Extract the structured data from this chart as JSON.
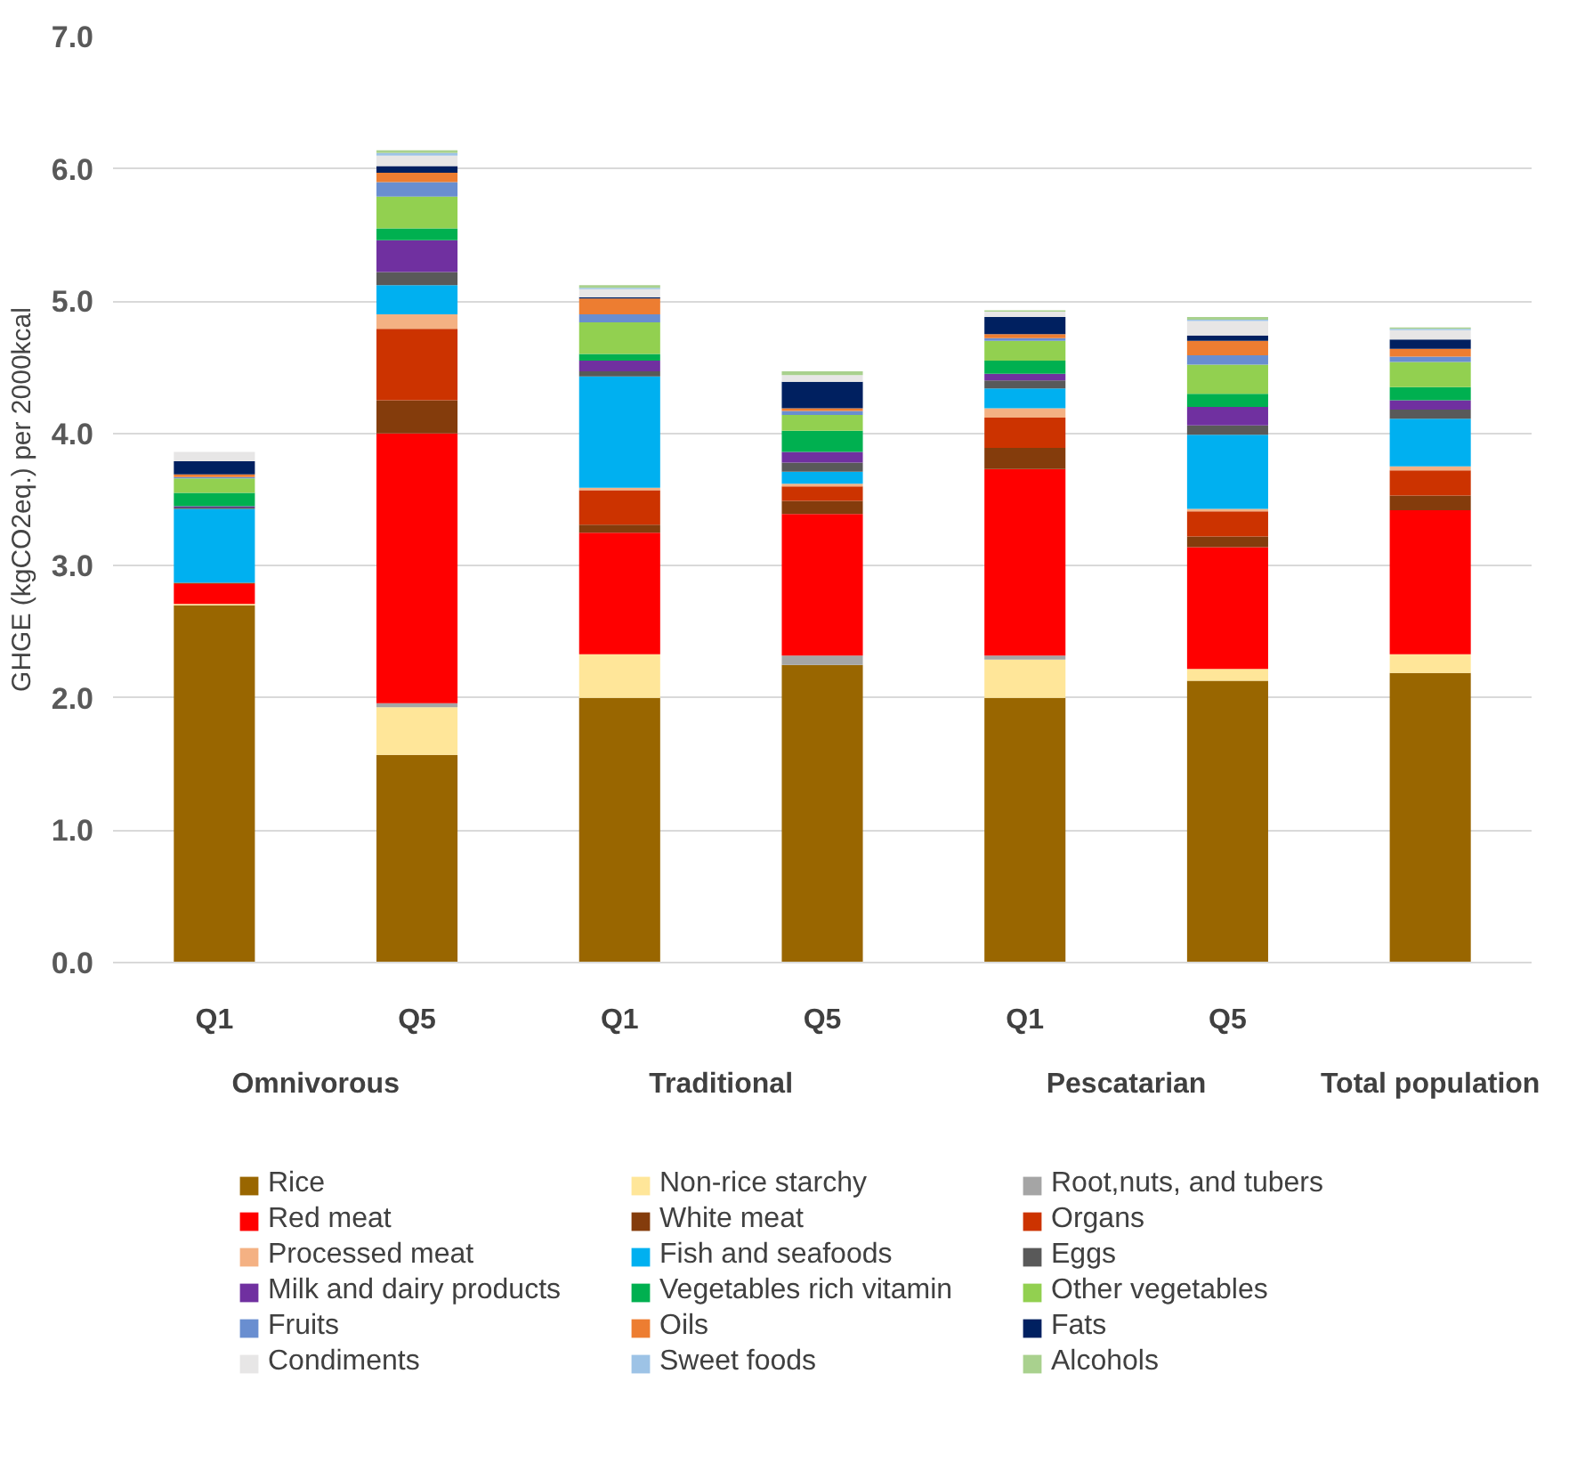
{
  "chart_data": {
    "type": "bar",
    "stacked": true,
    "ylabel": "GHGE (kgCO2eq.) per 2000kcal",
    "categories": [
      "Q1",
      "Q5",
      "Q1",
      "Q5",
      "Q1",
      "Q5",
      null
    ],
    "annotations": [
      "Omnivorous",
      "Traditional",
      "Pescatarian",
      "Total population"
    ],
    "ylim": [
      0,
      7
    ],
    "yticks": [
      {
        "value": 0,
        "label": "0.0"
      },
      {
        "value": 1,
        "label": "1.0"
      },
      {
        "value": 2,
        "label": "2.0"
      },
      {
        "value": 3,
        "label": "3.0"
      },
      {
        "value": 4,
        "label": "4.0"
      },
      {
        "value": 5,
        "label": "5.0"
      },
      {
        "value": 6,
        "label": "6.0"
      },
      {
        "value": 7,
        "label": "7.0"
      }
    ],
    "grid": "y",
    "legend": "bottom",
    "series": [
      {
        "name": "Rice",
        "color": "#996600",
        "values": [
          2.7,
          1.57,
          2.0,
          2.25,
          2.0,
          2.13,
          2.19
        ]
      },
      {
        "name": "Non-rice starchy",
        "color": "#ffe699",
        "values": [
          0.01,
          0.36,
          0.33,
          0.0,
          0.29,
          0.09,
          0.14
        ]
      },
      {
        "name": "Root,nuts, and tubers",
        "color": "#a5a5a5",
        "values": [
          0.0,
          0.03,
          null,
          0.07,
          0.03,
          null,
          null
        ]
      },
      {
        "name": "Red meat",
        "color": "#ff0000",
        "values": [
          0.15,
          2.04,
          0.92,
          1.07,
          1.41,
          0.92,
          1.09
        ]
      },
      {
        "name": "White meat",
        "color": "#843c0c",
        "values": [
          0.0,
          0.25,
          0.06,
          0.1,
          0.16,
          0.08,
          0.11
        ]
      },
      {
        "name": "Organs",
        "color": "#cc3300",
        "values": [
          0.01,
          0.54,
          0.26,
          0.11,
          0.23,
          0.19,
          0.19
        ]
      },
      {
        "name": "Processed meat",
        "color": "#f4b183",
        "values": [
          0.0,
          0.11,
          0.02,
          0.02,
          0.07,
          0.02,
          0.03
        ]
      },
      {
        "name": "Fish and seafoods",
        "color": "#00b0f0",
        "values": [
          0.56,
          0.22,
          0.84,
          0.09,
          0.15,
          0.56,
          0.36
        ]
      },
      {
        "name": "Eggs",
        "color": "#595959",
        "values": [
          0.01,
          0.1,
          0.04,
          0.07,
          0.06,
          0.07,
          0.07
        ]
      },
      {
        "name": "Milk and dairy products",
        "color": "#7030a0",
        "values": [
          0.01,
          0.24,
          0.08,
          0.08,
          0.05,
          0.14,
          0.07
        ]
      },
      {
        "name": "Vegetables rich vitamin",
        "color": "#00b050",
        "values": [
          0.1,
          0.09,
          0.05,
          0.16,
          0.1,
          0.1,
          0.1
        ]
      },
      {
        "name": "Other vegetables",
        "color": "#92d050",
        "values": [
          0.11,
          0.24,
          0.24,
          0.12,
          0.15,
          0.22,
          0.19
        ]
      },
      {
        "name": "Fruits",
        "color": "#698ed0",
        "values": [
          0.01,
          0.11,
          0.06,
          0.03,
          0.02,
          0.07,
          0.04
        ]
      },
      {
        "name": "Oils",
        "color": "#ed7d31",
        "values": [
          0.02,
          0.07,
          0.12,
          0.02,
          0.03,
          0.11,
          0.06
        ]
      },
      {
        "name": "Fats",
        "color": "#002060",
        "values": [
          0.1,
          0.05,
          0.01,
          0.2,
          0.13,
          0.04,
          0.07
        ]
      },
      {
        "name": "Condiments",
        "color": "#e7e6e6",
        "values": [
          0.07,
          0.08,
          0.06,
          0.05,
          0.04,
          0.11,
          0.07
        ]
      },
      {
        "name": "Sweet foods",
        "color": "#9dc3e6",
        "values": [
          0.0,
          0.02,
          0.01,
          0.0,
          0.0,
          0.01,
          0.01
        ]
      },
      {
        "name": "Alcohols",
        "color": "#a9d18e",
        "values": [
          0.0,
          0.02,
          0.02,
          0.03,
          0.01,
          0.02,
          0.01
        ]
      }
    ]
  }
}
